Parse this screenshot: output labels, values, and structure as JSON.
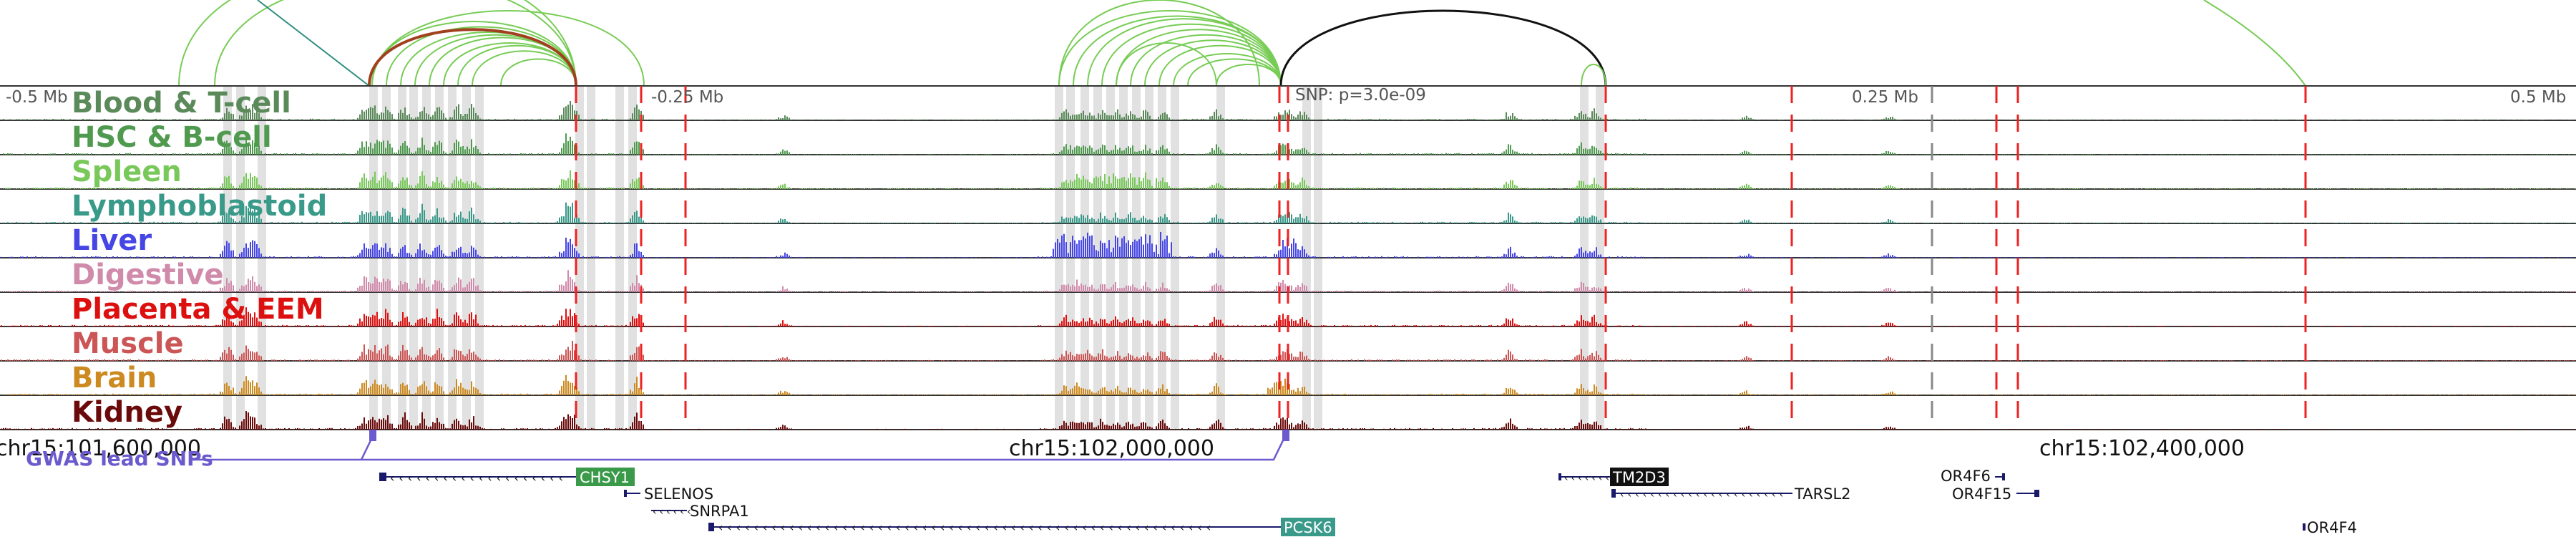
{
  "colors": {
    "track_line": "#333333",
    "highlight": "#d9d9d9",
    "marker": "#ee2222",
    "gray_marker": "#888888",
    "green_arc": "#77cc55",
    "teal_arc": "#2f8f7f",
    "brown_arc": "#a0401f",
    "black_arc": "#111111",
    "gwas": "#6a5acd"
  },
  "scale_labels": [
    "-0.5 Mb",
    "-0.25 Mb",
    "0.25 Mb",
    "0.5 Mb"
  ],
  "snp_label": "SNP: p=3.0e-09",
  "coordinates": [
    "chr15:101,600,000",
    "chr15:102,000,000",
    "chr15:102,400,000"
  ],
  "gwas_label": "GWAS lead SNPs",
  "tracks": [
    {
      "name": "Blood & T-cell",
      "color": "#5a8a5a"
    },
    {
      "name": "HSC & B-cell",
      "color": "#4f9a4f"
    },
    {
      "name": "Spleen",
      "color": "#78c85a"
    },
    {
      "name": "Lymphoblastoid",
      "color": "#3a9a8a"
    },
    {
      "name": "Liver",
      "color": "#4646e6"
    },
    {
      "name": "Digestive",
      "color": "#d08aaa"
    },
    {
      "name": "Placenta & EEM",
      "color": "#dd1010"
    },
    {
      "name": "Muscle",
      "color": "#cc5555"
    },
    {
      "name": "Brain",
      "color": "#cc8a20"
    },
    {
      "name": "Kidney",
      "color": "#6b0a0a"
    }
  ],
  "genes": [
    {
      "name": "CHSY1",
      "boxed": true,
      "box_color": "#3a9a4a"
    },
    {
      "name": "SELENOS",
      "boxed": false
    },
    {
      "name": "SNRPA1",
      "boxed": false
    },
    {
      "name": "PCSK6",
      "boxed": true,
      "box_color": "#3a9a8a"
    },
    {
      "name": "TM2D3",
      "boxed": true,
      "box_color": "#111111"
    },
    {
      "name": "TARSL2",
      "boxed": false
    },
    {
      "name": "OR4F6",
      "boxed": false
    },
    {
      "name": "OR4F15",
      "boxed": false
    },
    {
      "name": "OR4F4",
      "boxed": false
    }
  ]
}
